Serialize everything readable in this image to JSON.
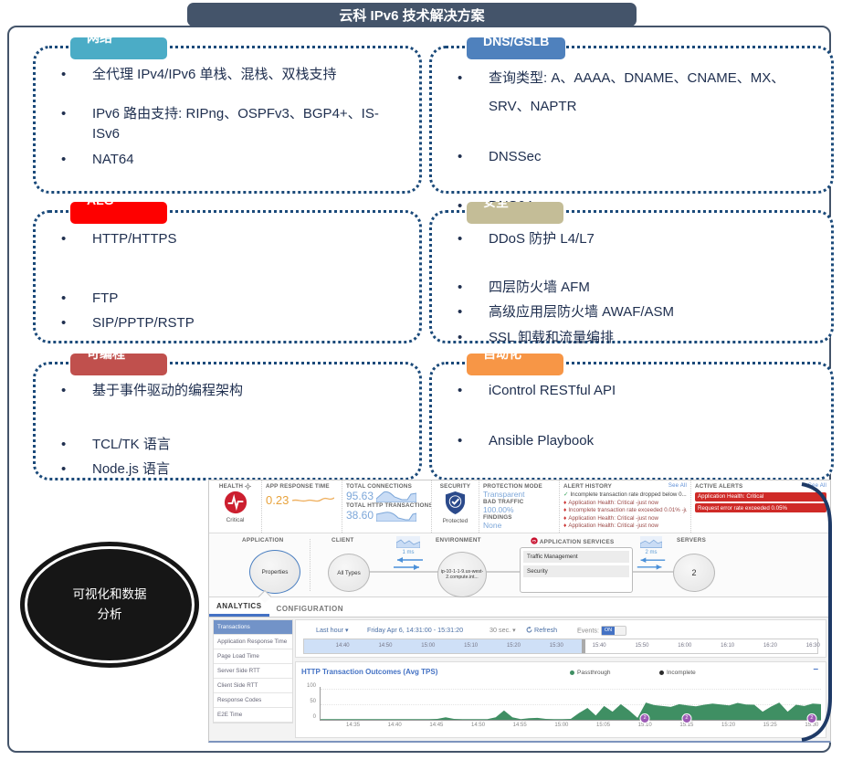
{
  "page_title": "云科 IPv6 技术解决方案",
  "visual_label": "可视化和数据分析",
  "colors": {
    "frame": "#44546A",
    "box_border": "#1B4A7A",
    "chart_green": "#3f8f63",
    "marker_purple": "#9d5bb5",
    "alert_red": "#cf2a27"
  },
  "boxes": [
    {
      "id": "network",
      "label": "网络",
      "color": "#4BACC6",
      "items": [
        "全代理 IPv4/IPv6 单栈、混栈、双栈支持",
        "IPv6 路由支持: RIPng、OSPFv3、BGP4+、IS-ISv6",
        "NAT64"
      ]
    },
    {
      "id": "dns-gslb",
      "label": "DNS/GSLB",
      "color": "#4F81BD",
      "items": [
        "查询类型: A、AAAA、DNAME、CNAME、MX、SRV、NAPTR",
        "DNSSec",
        "DNS64"
      ]
    },
    {
      "id": "alg",
      "label": "ALG",
      "color": "#FE0000",
      "items": [
        "HTTP/HTTPS",
        "FTP",
        "SIP/PPTP/RSTP"
      ]
    },
    {
      "id": "security",
      "label": "安全",
      "color": "#C4BD97",
      "items": [
        "DDoS 防护 L4/L7",
        "四层防火墙 AFM",
        "高级应用层防火墙 AWAF/ASM",
        "SSL 卸载和流量编排"
      ]
    },
    {
      "id": "programmable",
      "label": "可编程",
      "color": "#C0504D",
      "items": [
        "基于事件驱动的编程架构",
        "TCL/TK 语言",
        "Node.js 语言"
      ]
    },
    {
      "id": "automation",
      "label": "自动化",
      "color": "#F79646",
      "items": [
        "iControl RESTful API",
        "Ansible Playbook"
      ]
    }
  ],
  "dashboard": {
    "health": {
      "label": "HEALTH",
      "status": "Critical"
    },
    "app_response_time": {
      "label": "APP RESPONSE TIME",
      "value": "0.23"
    },
    "connections": {
      "label": "TOTAL CONNECTIONS",
      "value": "95.63"
    },
    "http_transactions": {
      "label": "TOTAL HTTP TRANSACTIONS/s",
      "value": "38.60"
    },
    "security": {
      "label": "SECURITY",
      "status": "Protected"
    },
    "protection": {
      "mode_label": "PROTECTION MODE",
      "mode_value": "Transparent",
      "bad_traffic_label": "BAD TRAFFIC",
      "bad_traffic_value": "100.00%",
      "findings_label": "FINDINGS",
      "findings_value": "None"
    },
    "alert_history": {
      "label": "ALERT HISTORY",
      "see_all": "See All",
      "items": [
        {
          "icon": "check",
          "text": "Incomplete transaction rate dropped below 0... -just now"
        },
        {
          "icon": "alert",
          "text": "Application Health: Critical -just now"
        },
        {
          "icon": "alert",
          "text": "Incomplete transaction rate exceeded 0.01% -just now"
        },
        {
          "icon": "alert",
          "text": "Application Health: Critical -just now"
        },
        {
          "icon": "alert",
          "text": "Application Health: Critical -just now"
        }
      ]
    },
    "active_alerts": {
      "label": "ACTIVE ALERTS",
      "see_all": "See All",
      "items": [
        "Application Health: Critical",
        "Request error rate exceeded 0.05%"
      ]
    },
    "topology": {
      "application_label": "APPLICATION",
      "application_node": "Properties",
      "client_label": "CLIENT",
      "client_node": "All Types",
      "latency_client": "1 ms",
      "environment_label": "ENVIRONMENT",
      "environment_node": "ip-10-1-1-9.us-west-2.compute.int...",
      "services_label": "APPLICATION SERVICES",
      "services": [
        "Traffic Management",
        "Security"
      ],
      "latency_server": "2 ms",
      "servers_label": "SERVERS",
      "servers_count": "2"
    },
    "tabs": [
      {
        "label": "ANALYTICS",
        "active": true
      },
      {
        "label": "CONFIGURATION",
        "active": false
      }
    ],
    "sidebar": [
      {
        "label": "Transactions",
        "selected": true
      },
      {
        "label": "Application Response Time"
      },
      {
        "label": "Page Load Time"
      },
      {
        "label": "Server Side RTT"
      },
      {
        "label": "Client Side RTT"
      },
      {
        "label": "Response Codes"
      },
      {
        "label": "E2E Time"
      }
    ],
    "timebar": {
      "range": "Last hour",
      "window": "Friday Apr 6, 14:31:00 - 15:31:20",
      "interval": "30 sec.",
      "refresh": "Refresh",
      "events_label": "Events:",
      "events_state": "ON",
      "start": "14:31",
      "selection_end": "15:36",
      "ticks": [
        "14:40",
        "14:50",
        "15:00",
        "15:10",
        "15:20",
        "15:30",
        "15:40",
        "15:50",
        "16:00",
        "16:10",
        "16:20",
        "16:30"
      ]
    }
  },
  "chart_data": {
    "type": "area",
    "title": "HTTP Transaction Outcomes (Avg TPS)",
    "legend": [
      {
        "label": "Passthrough",
        "color": "#3f8f63"
      },
      {
        "label": "Incomplete",
        "color": "#2b2b2b"
      }
    ],
    "ylabel": "",
    "ylim": [
      0,
      100
    ],
    "y_ticks": [
      "100",
      "50",
      "0"
    ],
    "x_start": "14:31",
    "x_ticks": [
      "14:35",
      "14:40",
      "14:45",
      "14:50",
      "14:55",
      "15:00",
      "15:05",
      "15:10",
      "15:15",
      "15:20",
      "15:25",
      "15:30"
    ],
    "series": [
      {
        "name": "Passthrough",
        "values": [
          2,
          2,
          2,
          2,
          2,
          2,
          2,
          2,
          2,
          2,
          2,
          2,
          2,
          2,
          3,
          8,
          3,
          2,
          2,
          2,
          2,
          8,
          30,
          8,
          2,
          5,
          6,
          3,
          2,
          2,
          3,
          22,
          38,
          14,
          44,
          26,
          50,
          30,
          6,
          55,
          47,
          44,
          41,
          50,
          46,
          43,
          48,
          52,
          49,
          46,
          54,
          49,
          48,
          26,
          42,
          55,
          26,
          48,
          44,
          52,
          50
        ]
      }
    ],
    "event_markers": [
      {
        "time": "15:10",
        "count": "2"
      },
      {
        "time": "15:15",
        "count": "2"
      },
      {
        "time": "15:30",
        "count": "2"
      }
    ]
  }
}
